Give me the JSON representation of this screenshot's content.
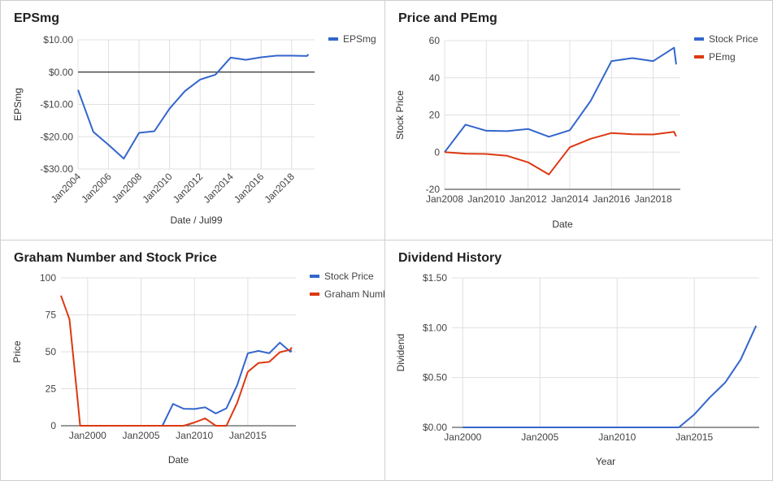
{
  "colors": {
    "blue": "#3366cc",
    "red": "#dc3912",
    "grid": "#e0e0e0",
    "zero": "#000000"
  },
  "chart_data": [
    {
      "id": "eps",
      "type": "line",
      "title": "EPSmg",
      "xlabel": "Date / Jul99",
      "ylabel": "EPSmg",
      "ylim": [
        -30,
        10
      ],
      "yticks": [
        10,
        0,
        -10,
        -20,
        -30
      ],
      "ytick_labels": [
        "$10.00",
        "$0.00",
        "-$10.00",
        "-$20.00",
        "-$30.00"
      ],
      "xlim": [
        2004,
        2019.5
      ],
      "xticks": [
        2004,
        2006,
        2008,
        2010,
        2012,
        2014,
        2016,
        2018
      ],
      "xtick_labels": [
        "Jan2004",
        "Jan2006",
        "Jan2008",
        "Jan2010",
        "Jan2012",
        "Jan2014",
        "Jan2016",
        "Jan2018"
      ],
      "zero_line": 0,
      "legend": "top-right",
      "series": [
        {
          "name": "EPSmg",
          "color": "#3366cc",
          "x": [
            2004,
            2005,
            2006,
            2007,
            2008,
            2009,
            2010,
            2011,
            2012,
            2013,
            2014,
            2015,
            2016,
            2017,
            2018,
            2019,
            2019.1
          ],
          "y": [
            -5.5,
            -18.5,
            -22.5,
            -26.8,
            -18.8,
            -18.3,
            -11.3,
            -5.9,
            -2.3,
            -0.8,
            4.5,
            3.8,
            4.6,
            5.1,
            5.1,
            5.0,
            5.5
          ]
        }
      ]
    },
    {
      "id": "pe",
      "type": "line",
      "title": "Price and PEmg",
      "xlabel": "Date",
      "ylabel": "Stock Price",
      "ylim": [
        -20,
        60
      ],
      "yticks": [
        60,
        40,
        20,
        0,
        -20
      ],
      "ytick_labels": [
        "60",
        "40",
        "20",
        "0",
        "-20"
      ],
      "xlim": [
        2008,
        2019.3
      ],
      "xticks": [
        2008,
        2010,
        2012,
        2014,
        2016,
        2018
      ],
      "xtick_labels": [
        "Jan2008",
        "Jan2010",
        "Jan2012",
        "Jan2014",
        "Jan2016",
        "Jan2018"
      ],
      "legend": "top-right",
      "series": [
        {
          "name": "Stock Price",
          "color": "#3366cc",
          "x": [
            2008,
            2009,
            2010,
            2011,
            2012,
            2013,
            2014,
            2015,
            2016,
            2017,
            2018,
            2019,
            2019.1
          ],
          "y": [
            0,
            14.8,
            11.5,
            11.3,
            12.5,
            8.3,
            11.8,
            27.5,
            49,
            50.6,
            49,
            56.2,
            47.2
          ]
        },
        {
          "name": "PEmg",
          "color": "#dc3912",
          "x": [
            2008,
            2009,
            2010,
            2011,
            2012,
            2013,
            2014,
            2015,
            2016,
            2017,
            2018,
            2019,
            2019.1
          ],
          "y": [
            0,
            -0.8,
            -1.0,
            -2.0,
            -5.5,
            -12.0,
            2.6,
            7.2,
            10.3,
            9.6,
            9.5,
            10.9,
            8.5
          ]
        }
      ]
    },
    {
      "id": "graham",
      "type": "line",
      "title": "Graham Number and Stock Price",
      "xlabel": "Date",
      "ylabel": "Price",
      "ylim": [
        0,
        100
      ],
      "yticks": [
        100,
        75,
        50,
        25,
        0
      ],
      "ytick_labels": [
        "100",
        "75",
        "50",
        "25",
        "0"
      ],
      "xlim": [
        1997.5,
        2019.5
      ],
      "xticks": [
        2000,
        2005,
        2010,
        2015
      ],
      "xtick_labels": [
        "Jan2000",
        "Jan2005",
        "Jan2010",
        "Jan2015"
      ],
      "legend": "top-right",
      "series": [
        {
          "name": "Stock Price",
          "color": "#3366cc",
          "x": [
            1999.3,
            2000,
            2001,
            2002,
            2003,
            2004,
            2005,
            2006,
            2007,
            2008,
            2009,
            2010,
            2011,
            2012,
            2013,
            2014,
            2015,
            2016,
            2017,
            2018,
            2019,
            2019.1
          ],
          "y": [
            0,
            0,
            0,
            0,
            0,
            0,
            0,
            0,
            0,
            14.8,
            11.5,
            11.3,
            12.5,
            8.3,
            11.8,
            27.5,
            49,
            50.6,
            49,
            56.2,
            50,
            51
          ]
        },
        {
          "name": "Graham Number",
          "color": "#dc3912",
          "x": [
            1997.5,
            1998.3,
            1999.0,
            1999.3,
            2000,
            2001,
            2002,
            2003,
            2004,
            2005,
            2006,
            2007,
            2008,
            2009,
            2010,
            2011,
            2012,
            2013,
            2014,
            2015,
            2016,
            2017,
            2018,
            2019,
            2019.1
          ],
          "y": [
            88,
            72,
            22,
            0,
            0,
            0,
            0,
            0,
            0,
            0,
            0,
            0,
            0,
            0,
            2.2,
            5,
            0,
            0,
            15.5,
            36.5,
            42.5,
            43.2,
            49.7,
            51.5,
            53
          ]
        }
      ]
    },
    {
      "id": "dividend",
      "type": "line",
      "title": "Dividend History",
      "xlabel": "Year",
      "ylabel": "Dividend",
      "ylim": [
        0,
        1.5
      ],
      "yticks": [
        1.5,
        1.0,
        0.5,
        0
      ],
      "ytick_labels": [
        "$1.50",
        "$1.00",
        "$0.50",
        "$0.00"
      ],
      "xlim": [
        1999.3,
        2019.2
      ],
      "xticks": [
        2000,
        2005,
        2010,
        2015
      ],
      "xtick_labels": [
        "Jan2000",
        "Jan2005",
        "Jan2010",
        "Jan2015"
      ],
      "legend": "none",
      "series": [
        {
          "name": "",
          "color": "#3366cc",
          "x": [
            2000,
            2001,
            2002,
            2003,
            2004,
            2005,
            2006,
            2007,
            2008,
            2009,
            2010,
            2011,
            2012,
            2013,
            2014,
            2015,
            2016,
            2017,
            2018,
            2019
          ],
          "y": [
            0,
            0,
            0,
            0,
            0,
            0,
            0,
            0,
            0,
            0,
            0,
            0,
            0,
            0,
            0,
            0.13,
            0.3,
            0.45,
            0.68,
            1.02
          ]
        }
      ]
    }
  ]
}
